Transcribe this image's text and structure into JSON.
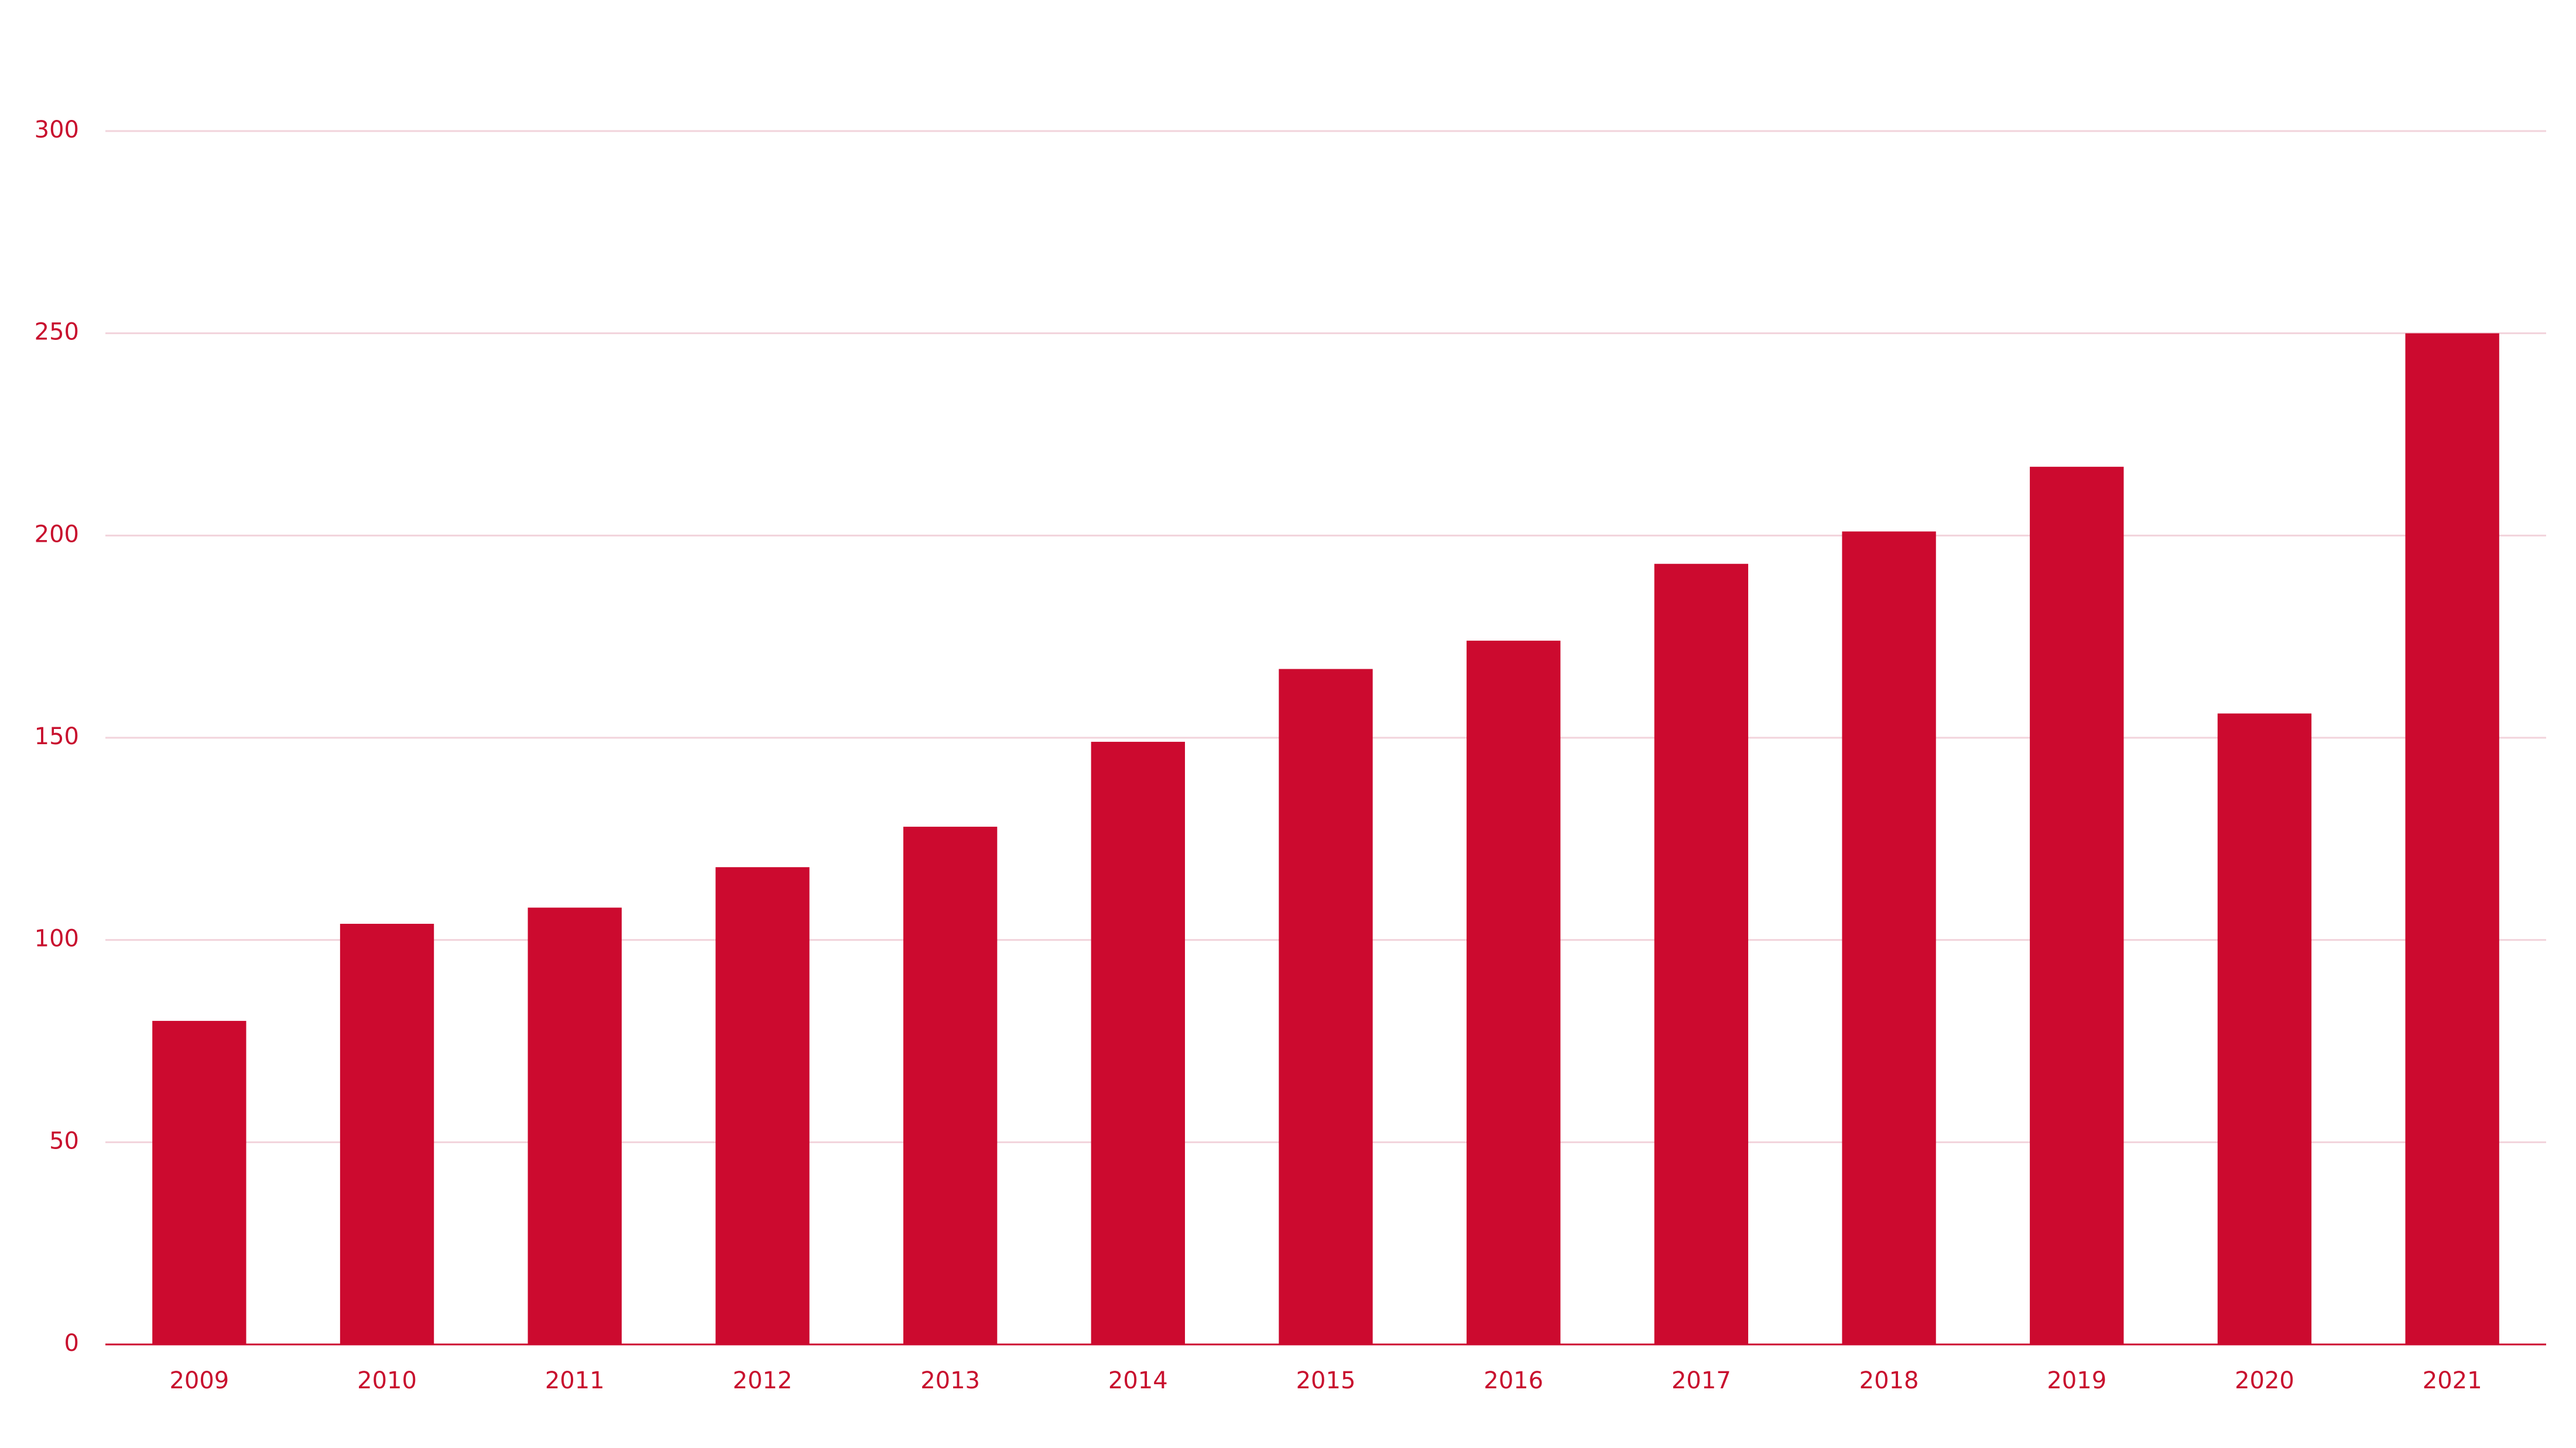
{
  "chart_data": {
    "type": "bar",
    "categories": [
      "2009",
      "2010",
      "2011",
      "2012",
      "2013",
      "2014",
      "2015",
      "2016",
      "2017",
      "2018",
      "2019",
      "2020",
      "2021"
    ],
    "values": [
      80,
      104,
      108,
      118,
      128,
      149,
      167,
      174,
      193,
      201,
      217,
      156,
      250
    ],
    "color": "#cc0a2f",
    "ylim": [
      0,
      300
    ],
    "yticks": [
      0,
      50,
      100,
      150,
      200,
      250,
      300
    ],
    "grid": true
  }
}
